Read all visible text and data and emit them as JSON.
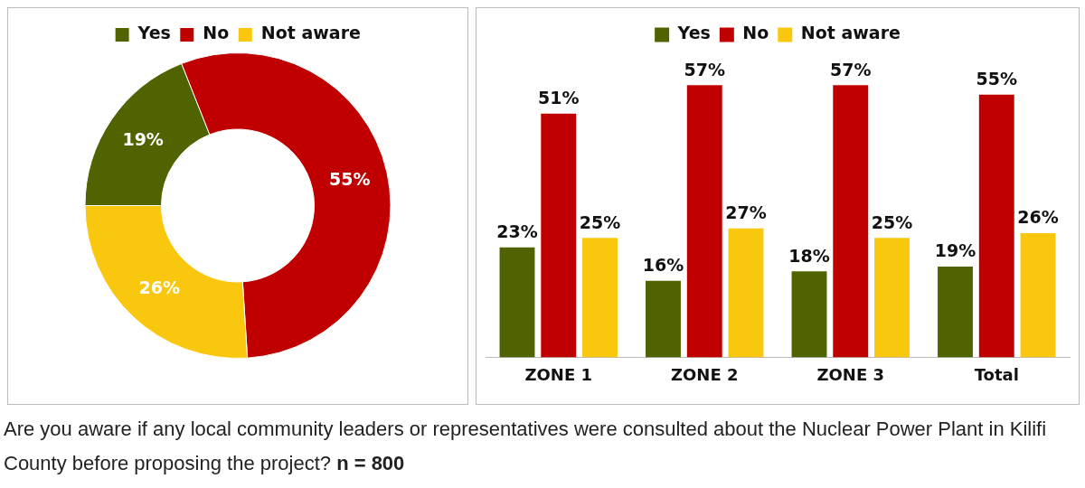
{
  "chart_data": [
    {
      "type": "donut",
      "categories": [
        "Yes",
        "No",
        "Not aware"
      ],
      "values": [
        19,
        55,
        26
      ],
      "colors": [
        "#4f6300",
        "#c00000",
        "#f9c80e"
      ],
      "value_labels": [
        "19%",
        "55%",
        "26%"
      ],
      "legend": "top",
      "annotations": [
        "Are you aware if any local community leaders or representatives were consulted about the Nuclear Power Plant in Kilifi County before proposing the project? n = 800"
      ]
    },
    {
      "type": "bar",
      "categories": [
        "ZONE 1",
        "ZONE 2",
        "ZONE 3",
        "Total"
      ],
      "legend": "top",
      "tick_labels": "x",
      "series": [
        {
          "name": "Yes",
          "color": "#4f6300",
          "values": [
            23,
            16,
            18,
            19
          ],
          "value_labels": [
            "23%",
            "16%",
            "18%",
            "19%"
          ]
        },
        {
          "name": "No",
          "color": "#c00000",
          "values": [
            51,
            57,
            57,
            55
          ],
          "value_labels": [
            "51%",
            "57%",
            "57%",
            "55%"
          ]
        },
        {
          "name": "Not aware",
          "color": "#f9c80e",
          "values": [
            25,
            27,
            25,
            26
          ],
          "value_labels": [
            "25%",
            "27%",
            "25%",
            "26%"
          ]
        }
      ]
    }
  ]
}
